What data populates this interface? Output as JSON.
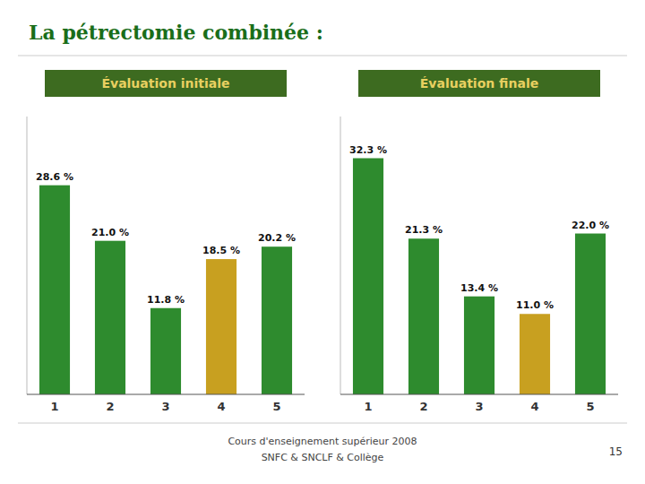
{
  "title": "La pétrectomie combinée :",
  "annotations": [
    "Cours d'enseignement supérieur 2008",
    "SNFC & SNCLF & Collège",
    "15"
  ],
  "chart_data": [
    {
      "type": "bar",
      "title": "Évaluation initiale",
      "categories": [
        "1",
        "2",
        "3",
        "4",
        "5"
      ],
      "values": [
        28.6,
        21.0,
        11.8,
        18.5,
        20.2
      ],
      "value_labels": [
        "28.6 %",
        "21.0 %",
        "11.8 %",
        "18.5 %",
        "20.2 %"
      ],
      "colors": [
        "#2e8b2e",
        "#2e8b2e",
        "#2e8b2e",
        "#c8a020",
        "#2e8b2e"
      ],
      "ylim": [
        0,
        38
      ],
      "data_labels": true,
      "tick_labels": "x",
      "grid": false
    },
    {
      "type": "bar",
      "title": "Évaluation finale",
      "categories": [
        "1",
        "2",
        "3",
        "4",
        "5"
      ],
      "values": [
        32.3,
        21.3,
        13.4,
        11.0,
        22.0
      ],
      "value_labels": [
        "32.3 %",
        "21.3 %",
        "13.4 %",
        "11.0 %",
        "22.0 %"
      ],
      "colors": [
        "#2e8b2e",
        "#2e8b2e",
        "#2e8b2e",
        "#c8a020",
        "#2e8b2e"
      ],
      "ylim": [
        0,
        38
      ],
      "data_labels": true,
      "tick_labels": "x",
      "grid": false
    }
  ]
}
